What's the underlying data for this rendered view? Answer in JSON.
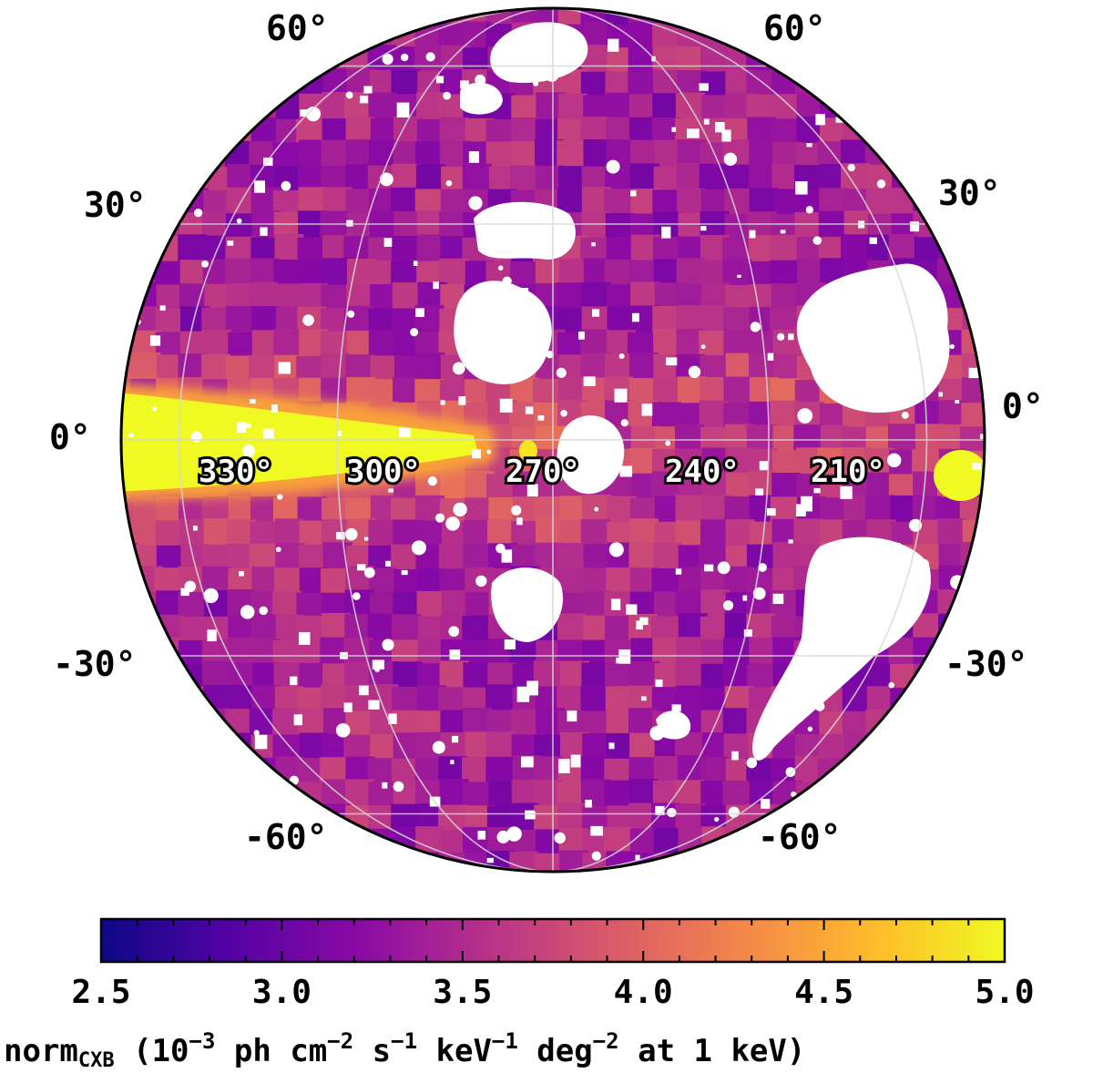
{
  "map": {
    "projection": "orthographic",
    "center_lon_deg": 270,
    "center_lat_deg": 0,
    "graticule": true,
    "lat_labels_left": [
      "60°",
      "30°",
      "0°",
      "-30°",
      "-60°"
    ],
    "lat_labels_right": [
      "60°",
      "30°",
      "0°",
      "-30°",
      "-60°"
    ],
    "lon_labels": [
      "330°",
      "300°",
      "270°",
      "240°",
      "210°"
    ],
    "masked_regions_color": "#ffffff",
    "features": [
      {
        "name": "galactic-plane-band",
        "description_level": "high (~4.8-5.0)"
      },
      {
        "name": "large-masked-source-center"
      },
      {
        "name": "large-masked-source-east-north"
      },
      {
        "name": "large-masked-source-east-south"
      }
    ]
  },
  "colorbar": {
    "colormap": "plasma",
    "min": 2.5,
    "max": 5.0,
    "ticks": [
      "2.5",
      "3.0",
      "3.5",
      "4.0",
      "4.5",
      "5.0"
    ],
    "tick_values": [
      2.5,
      3.0,
      3.5,
      4.0,
      4.5,
      5.0
    ],
    "minor_step": 0.1,
    "label_main": "norm",
    "label_sub": "CXB",
    "label_units_parts": [
      {
        "t": "  (10",
        "sup": false
      },
      {
        "t": "−3",
        "sup": true
      },
      {
        "t": " ph cm",
        "sup": false
      },
      {
        "t": "−2",
        "sup": true
      },
      {
        "t": " s",
        "sup": false
      },
      {
        "t": "−1",
        "sup": true
      },
      {
        "t": " keV",
        "sup": false
      },
      {
        "t": "−1",
        "sup": true
      },
      {
        "t": " deg",
        "sup": false
      },
      {
        "t": "−2",
        "sup": true
      },
      {
        "t": "  at 1 keV)",
        "sup": false
      }
    ],
    "colors": [
      "#0d0887",
      "#5302a3",
      "#8b0aa5",
      "#b83289",
      "#db5c68",
      "#f48849",
      "#febc2a",
      "#f0f921"
    ]
  }
}
